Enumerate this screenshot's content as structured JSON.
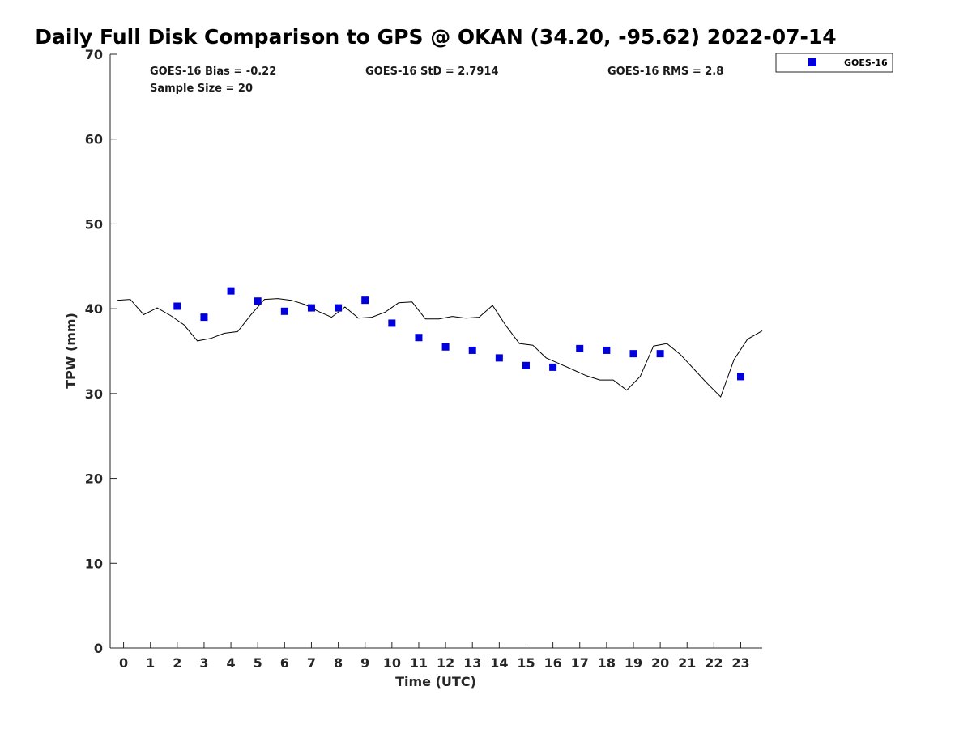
{
  "chart_data": {
    "type": "scatter",
    "title": "Daily Full Disk Comparison to GPS @ OKAN (34.20, -95.62) 2022-07-14",
    "xlabel": "Time (UTC)",
    "ylabel": "TPW (mm)",
    "xlim": [
      -0.5,
      23.8
    ],
    "ylim": [
      0,
      70
    ],
    "x_ticks": [
      0,
      1,
      2,
      3,
      4,
      5,
      6,
      7,
      8,
      9,
      10,
      11,
      12,
      13,
      14,
      15,
      16,
      17,
      18,
      19,
      20,
      21,
      22,
      23
    ],
    "y_ticks": [
      0,
      10,
      20,
      30,
      40,
      50,
      60,
      70
    ],
    "grid": false,
    "legend_position": "top-right",
    "stats": {
      "bias": "GOES-16 Bias = -0.22",
      "std": "GOES-16 StD = 2.7914",
      "rms": "GOES-16 RMS = 2.8",
      "sample_size": "Sample Size = 20"
    },
    "gps_line": {
      "color": "#000000",
      "x": [
        -0.25,
        0.25,
        0.75,
        1.25,
        1.75,
        2.25,
        2.75,
        3.25,
        3.75,
        4.25,
        4.75,
        5.25,
        5.75,
        6.25,
        6.75,
        7.25,
        7.75,
        8.25,
        8.75,
        9.25,
        9.75,
        10.25,
        10.75,
        11.25,
        11.75,
        12.25,
        12.75,
        13.25,
        13.75,
        14.25,
        14.75,
        15.25,
        15.75,
        16.25,
        16.75,
        17.25,
        17.75,
        18.25,
        18.75,
        19.25,
        19.75,
        20.25,
        20.75,
        21.25,
        21.75,
        22.25,
        22.75,
        23.25,
        23.8
      ],
      "y": [
        41,
        41.1,
        39.3,
        40.1,
        39.2,
        38.1,
        36.2,
        36.5,
        37.1,
        37.3,
        39.3,
        41.1,
        41.2,
        41.0,
        40.5,
        39.7,
        39.0,
        40.2,
        38.9,
        39.0,
        39.6,
        40.7,
        40.8,
        38.8,
        38.8,
        39.1,
        38.9,
        39.0,
        40.4,
        38.0,
        35.9,
        35.7,
        34.2,
        33.5,
        32.8,
        32.1,
        31.6,
        31.6,
        30.4,
        32.0,
        35.6,
        35.9,
        34.6,
        32.9,
        31.2,
        29.6,
        34.0,
        36.4,
        37.4
      ]
    },
    "series": [
      {
        "name": "GOES-16",
        "color": "#0000dd",
        "marker": "square",
        "x": [
          2,
          3,
          4,
          5,
          6,
          7,
          8,
          9,
          10,
          11,
          12,
          13,
          14,
          15,
          16,
          17,
          18,
          19,
          20,
          23
        ],
        "y": [
          40.3,
          39.0,
          42.1,
          40.9,
          39.7,
          40.1,
          40.1,
          41.0,
          38.3,
          36.6,
          35.5,
          35.1,
          34.2,
          33.3,
          33.1,
          35.3,
          35.1,
          34.7,
          34.7,
          32.0
        ]
      }
    ]
  }
}
